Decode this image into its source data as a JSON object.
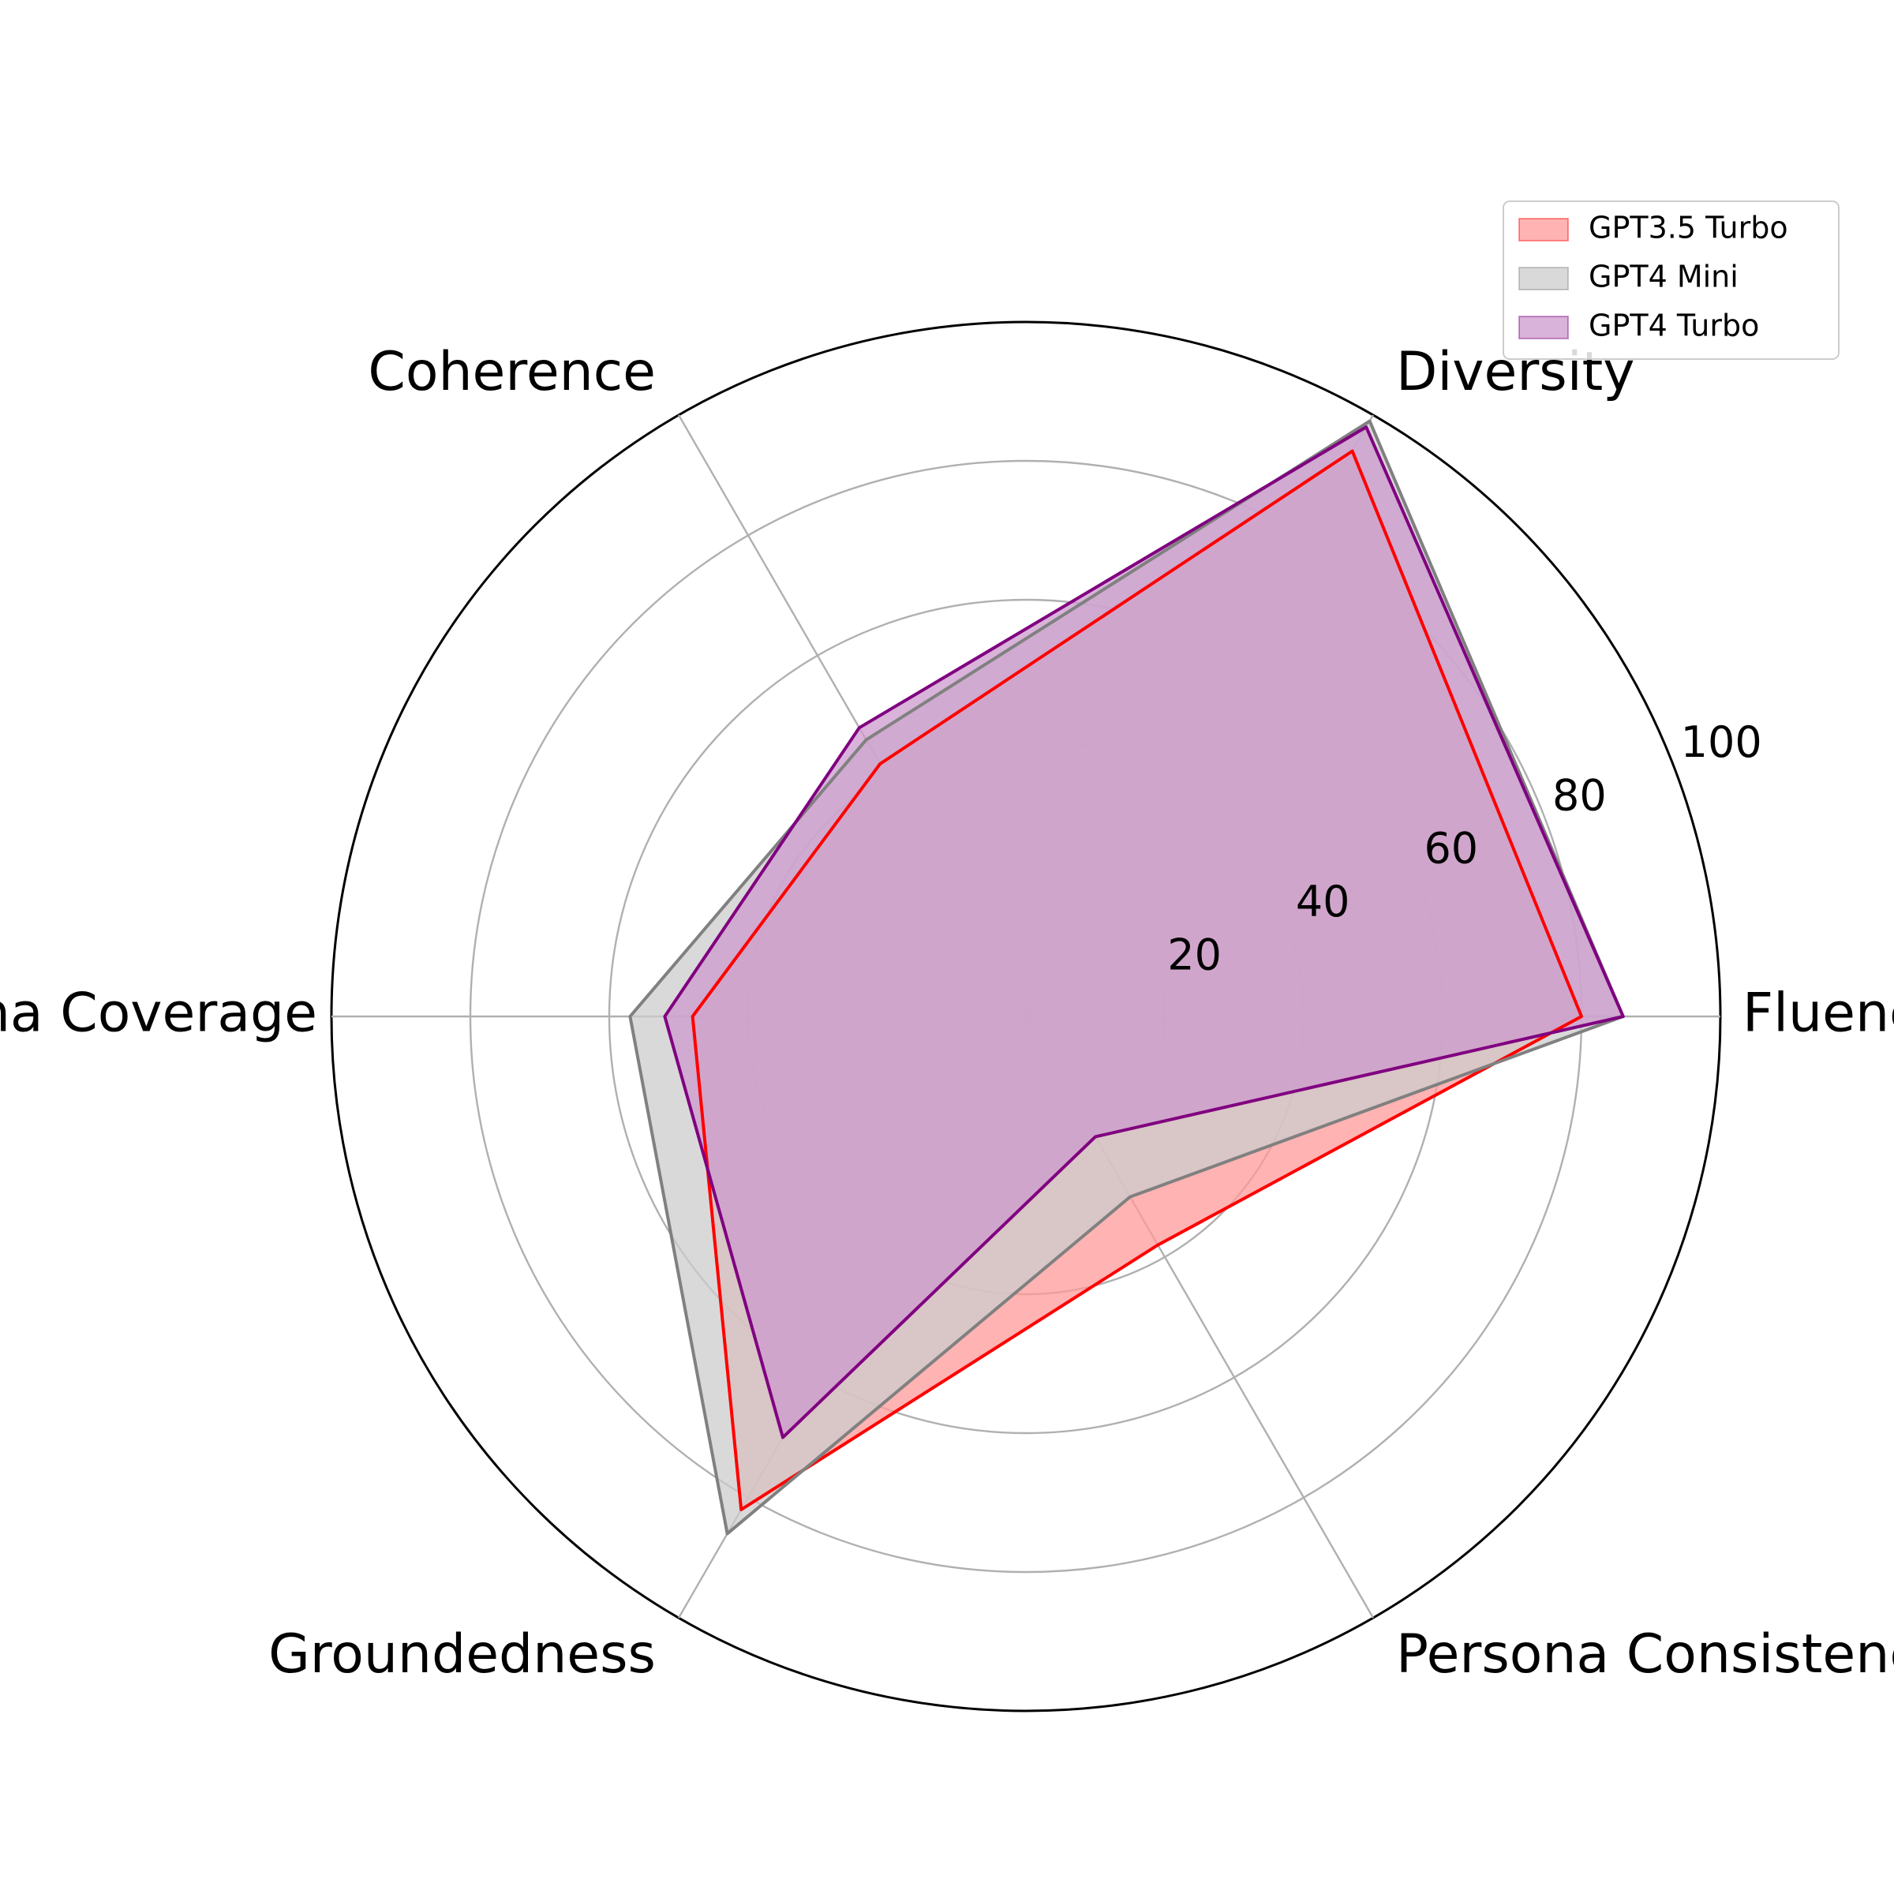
{
  "chart_data": {
    "type": "radar",
    "axes": [
      "Fluency",
      "Diversity",
      "Coherence",
      "Persona Coverage",
      "Groundedness",
      "Persona Consistency"
    ],
    "rlim": [
      0,
      100
    ],
    "rticks": [
      20,
      40,
      60,
      80,
      100
    ],
    "grid": true,
    "legend_placement": "top-right",
    "series": [
      {
        "name": "GPT3.5 Turbo",
        "values": [
          80,
          94,
          42,
          48,
          82,
          38
        ],
        "color": "#ff0000",
        "fill": "#ff9999"
      },
      {
        "name": "GPT4 Mini",
        "values": [
          86,
          99,
          46,
          57,
          86,
          30
        ],
        "color": "#808080",
        "fill": "#cccccc"
      },
      {
        "name": "GPT4 Turbo",
        "values": [
          86,
          98,
          48,
          52,
          70,
          20
        ],
        "color": "#800080",
        "fill": "#cc99cc"
      }
    ]
  }
}
